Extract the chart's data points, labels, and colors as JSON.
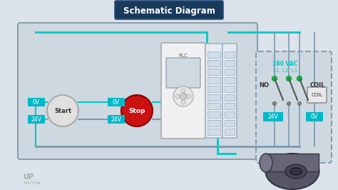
{
  "title": "Schematic Diagram",
  "title_bg": "#1a3a5c",
  "title_fg": "#ffffff",
  "bg_color": "#dce3ea",
  "wire_color_teal": "#00c8c8",
  "wire_color_gray": "#7a9ab0",
  "start_label": "Start",
  "stop_label": "Stop",
  "start_color": "#e0e0e0",
  "stop_color": "#cc1111",
  "voltage_0v": "0V",
  "voltage_24v": "24V",
  "voltage_380": "380 VAC",
  "voltage_L": "L1  L2  L3",
  "no_label": "NO",
  "coil_label": "COIL",
  "plc_label": "PLC",
  "logo_text": "UP\nMATION",
  "panel_bg": "#c8d4dc",
  "panel_border": "#8a9faf",
  "plc_bg": "#f0f0f0",
  "plc_border": "#aaaaaa",
  "module_bg": "#e8eef2",
  "switch_color": "#00c8c8",
  "green_dot": "#00cc44",
  "motor_color": "#555566",
  "tag_bg": "#00b8c8",
  "tag_fg": "#ffffff"
}
